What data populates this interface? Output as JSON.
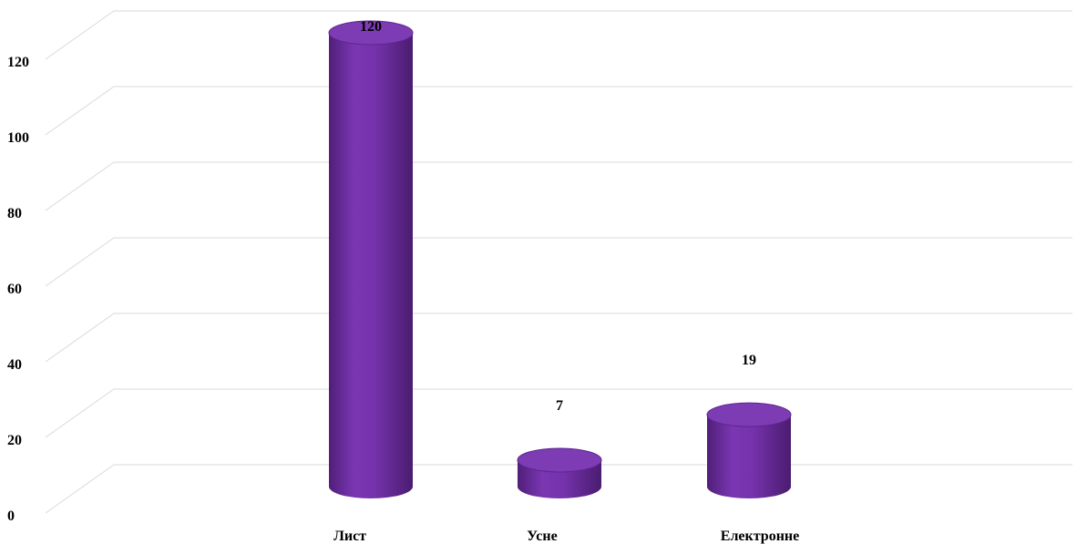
{
  "chart_data": {
    "type": "bar",
    "style": "3d-cylinder",
    "title": "",
    "xlabel": "",
    "ylabel": "",
    "categories": [
      "Лист",
      "Усне",
      "Електронне"
    ],
    "series": [
      {
        "values": [
          120,
          7,
          19
        ]
      }
    ],
    "data_labels": [
      "120",
      "7",
      "19"
    ],
    "yticks": [
      "0",
      "20",
      "40",
      "60",
      "80",
      "100",
      "120"
    ],
    "ylim": [
      0,
      140
    ],
    "grid": true,
    "legend": "none",
    "colors": {
      "bar": "#7030a0",
      "bar_top": "#7e3cb4",
      "grid": "#d9d9d9"
    }
  }
}
